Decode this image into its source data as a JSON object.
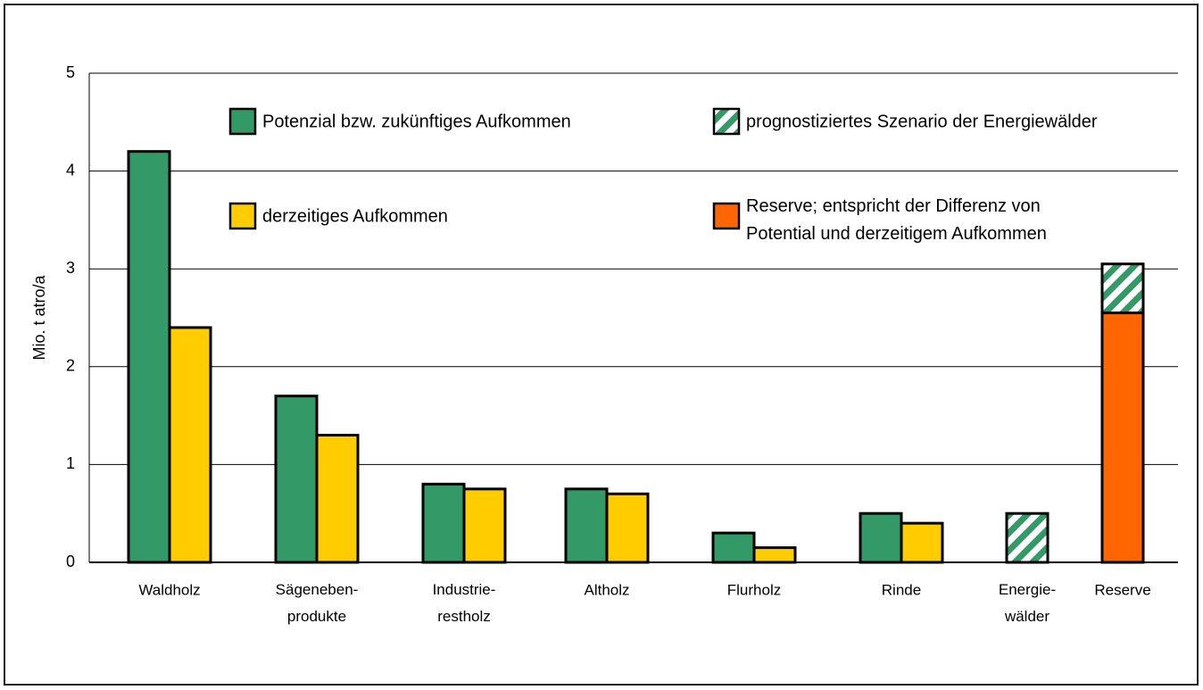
{
  "chart_data": {
    "type": "bar",
    "y_label": "Mio. t atro/a",
    "categories": [
      "Waldholz",
      "Sägeneben-\nprodukte",
      "Industrie-\nrestholz",
      "Altholz",
      "Flurholz",
      "Rinde",
      "Energie-\nwälder",
      "Reserve"
    ],
    "series": [
      {
        "name": "Potenzial bzw. zukünftiges Aufkommen",
        "color": "#339966",
        "values": [
          4.2,
          1.7,
          0.8,
          0.75,
          0.3,
          0.5,
          null,
          null
        ]
      },
      {
        "name": "derzeitiges Aufkommen",
        "color": "#ffcc00",
        "values": [
          2.4,
          1.3,
          0.75,
          0.7,
          0.15,
          0.4,
          null,
          null
        ]
      },
      {
        "name": "prognostiziertes Szenario der Energiewälder",
        "color": "#339966",
        "values": [
          null,
          null,
          null,
          null,
          null,
          null,
          0.5,
          0.5
        ]
      },
      {
        "name": "Reserve; entspricht der Differenz von\nPotential und derzeitigem Aufkommen",
        "color": "#ff6600",
        "values": [
          null,
          null,
          null,
          null,
          null,
          null,
          null,
          2.55
        ]
      }
    ],
    "ylim": [
      0,
      5
    ],
    "yticks": [
      0,
      1,
      2,
      3,
      4,
      5
    ],
    "grid": true
  }
}
